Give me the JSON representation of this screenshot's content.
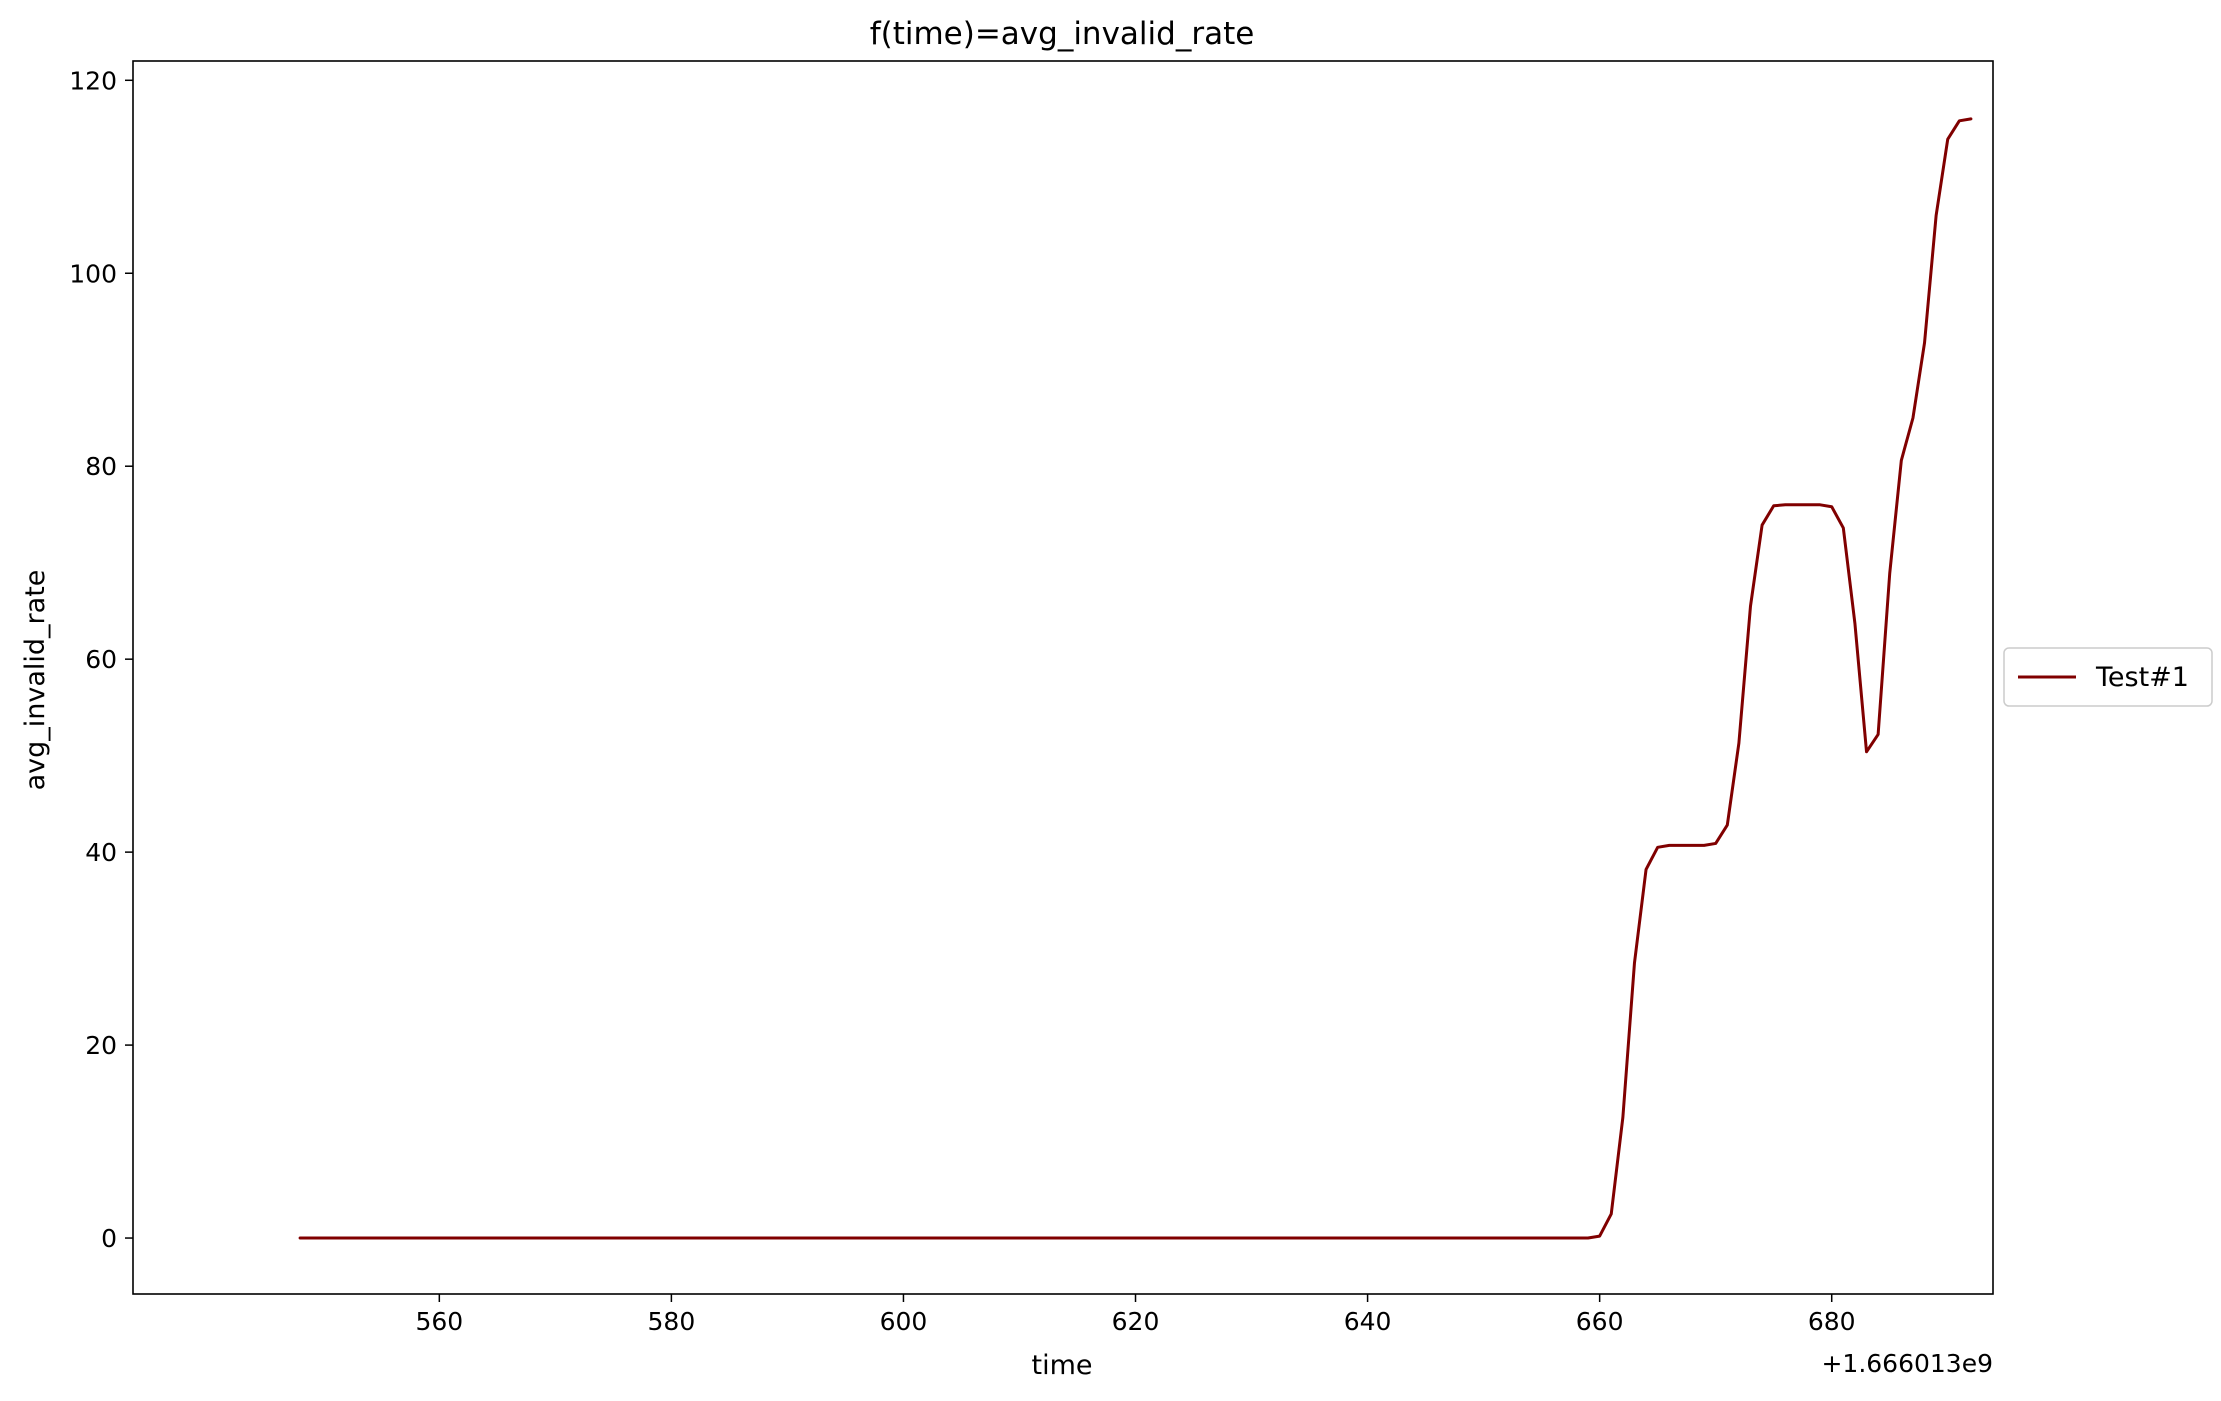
{
  "chart_data": {
    "type": "line",
    "title": "f(time)=avg_invalid_rate",
    "xlabel": "time",
    "ylabel": "avg_invalid_rate",
    "x_offset_label": "+1.666013e9",
    "xlim": [
      533.6,
      693.9
    ],
    "ylim": [
      -5.8,
      122.0
    ],
    "xticks": [
      560,
      580,
      600,
      620,
      640,
      660,
      680
    ],
    "xtick_labels": [
      "560",
      "580",
      "600",
      "620",
      "640",
      "660",
      "680"
    ],
    "yticks": [
      0,
      20,
      40,
      60,
      80,
      100,
      120
    ],
    "ytick_labels": [
      "0",
      "20",
      "40",
      "60",
      "80",
      "100",
      "120"
    ],
    "grid": false,
    "legend_position": "center-right-outside",
    "series": [
      {
        "name": "Test#1",
        "color": "#800000",
        "x": [
          548,
          560,
          580,
          600,
          620,
          640,
          659,
          660,
          661,
          662,
          663,
          664,
          665,
          666,
          667,
          668,
          669,
          670,
          671,
          672,
          673,
          674,
          675,
          676,
          677,
          678,
          679,
          680,
          681,
          682,
          683,
          684,
          685,
          686,
          687,
          688,
          689,
          690,
          691,
          692
        ],
        "y": [
          0,
          0,
          0,
          0,
          0,
          0,
          0,
          0.2,
          2.5,
          12.5,
          28.5,
          38.2,
          40.5,
          40.7,
          40.7,
          40.7,
          40.7,
          40.9,
          42.8,
          51.3,
          65.5,
          73.9,
          75.9,
          76.0,
          76.0,
          76.0,
          76.0,
          75.8,
          73.6,
          63.7,
          50.4,
          52.2,
          68.9,
          80.6,
          85.0,
          92.8,
          106.0,
          113.9,
          115.8,
          116.0
        ]
      }
    ]
  }
}
